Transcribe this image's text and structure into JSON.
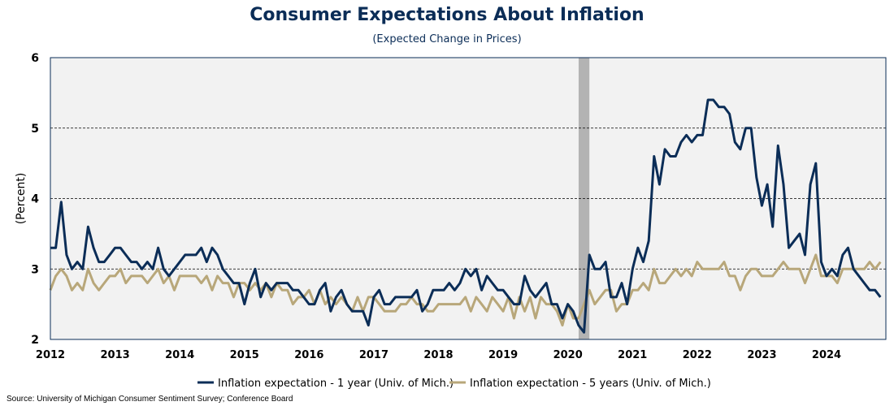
{
  "chart_data": {
    "type": "line",
    "title": "Consumer Expectations About Inflation",
    "subtitle": "(Expected Change in Prices)",
    "ylabel": "(Percent)",
    "xlabel": "",
    "ylim": [
      2,
      6
    ],
    "yticks": [
      "2",
      "3",
      "4",
      "5",
      "6"
    ],
    "xlim": [
      2012.0,
      2024.917
    ],
    "xticks": [
      "2012",
      "2013",
      "2014",
      "2015",
      "2016",
      "2017",
      "2018",
      "2019",
      "2020",
      "2021",
      "2022",
      "2023",
      "2024"
    ],
    "grid": "dashed horizontal at 3, 4, 5",
    "legend": "bottom",
    "recession_shading": {
      "start": 2020.167,
      "end": 2020.333,
      "color": "#b3b3b3"
    },
    "plot_background": "#f2f2f2",
    "series": [
      {
        "name": "Inflation expectation - 1 year (Univ. of Mich.)",
        "color": "#0b2d57",
        "start": "2012-01",
        "values": [
          3.3,
          3.3,
          3.95,
          3.2,
          3.0,
          3.1,
          3.0,
          3.6,
          3.3,
          3.1,
          3.1,
          3.2,
          3.3,
          3.3,
          3.2,
          3.1,
          3.1,
          3.0,
          3.1,
          3.0,
          3.3,
          3.0,
          2.9,
          3.0,
          3.1,
          3.2,
          3.2,
          3.2,
          3.3,
          3.1,
          3.3,
          3.2,
          3.0,
          2.9,
          2.8,
          2.8,
          2.5,
          2.8,
          3.0,
          2.6,
          2.8,
          2.7,
          2.8,
          2.8,
          2.8,
          2.7,
          2.7,
          2.6,
          2.5,
          2.5,
          2.7,
          2.8,
          2.4,
          2.6,
          2.7,
          2.5,
          2.4,
          2.4,
          2.4,
          2.2,
          2.6,
          2.7,
          2.5,
          2.5,
          2.6,
          2.6,
          2.6,
          2.6,
          2.7,
          2.4,
          2.5,
          2.7,
          2.7,
          2.7,
          2.8,
          2.7,
          2.8,
          3.0,
          2.9,
          3.0,
          2.7,
          2.9,
          2.8,
          2.7,
          2.7,
          2.6,
          2.5,
          2.5,
          2.9,
          2.7,
          2.6,
          2.7,
          2.8,
          2.5,
          2.5,
          2.3,
          2.5,
          2.4,
          2.2,
          2.1,
          3.2,
          3.0,
          3.0,
          3.1,
          2.6,
          2.6,
          2.8,
          2.5,
          3.0,
          3.3,
          3.1,
          3.4,
          4.6,
          4.2,
          4.7,
          4.6,
          4.6,
          4.8,
          4.9,
          4.8,
          4.9,
          4.9,
          5.4,
          5.4,
          5.3,
          5.3,
          5.2,
          4.8,
          4.7,
          5.0,
          5.0,
          4.3,
          3.9,
          4.2,
          3.6,
          4.75,
          4.2,
          3.3,
          3.4,
          3.5,
          3.2,
          4.2,
          4.5,
          3.1,
          2.9,
          3.0,
          2.9,
          3.2,
          3.3,
          3.0,
          2.9,
          2.8,
          2.7,
          2.7,
          2.6
        ]
      },
      {
        "name": "Inflation expectation - 5 years (Univ. of Mich.)",
        "color": "#b8a77a",
        "start": "2012-01",
        "values": [
          2.7,
          2.9,
          3.0,
          2.9,
          2.7,
          2.8,
          2.7,
          3.0,
          2.8,
          2.7,
          2.8,
          2.9,
          2.9,
          3.0,
          2.8,
          2.9,
          2.9,
          2.9,
          2.8,
          2.9,
          3.0,
          2.8,
          2.9,
          2.7,
          2.9,
          2.9,
          2.9,
          2.9,
          2.8,
          2.9,
          2.7,
          2.9,
          2.8,
          2.8,
          2.6,
          2.8,
          2.8,
          2.7,
          2.8,
          2.7,
          2.8,
          2.6,
          2.8,
          2.7,
          2.7,
          2.5,
          2.6,
          2.6,
          2.7,
          2.5,
          2.7,
          2.5,
          2.6,
          2.5,
          2.6,
          2.5,
          2.4,
          2.6,
          2.4,
          2.6,
          2.6,
          2.5,
          2.4,
          2.4,
          2.4,
          2.5,
          2.5,
          2.6,
          2.5,
          2.5,
          2.4,
          2.4,
          2.5,
          2.5,
          2.5,
          2.5,
          2.5,
          2.6,
          2.4,
          2.6,
          2.5,
          2.4,
          2.6,
          2.5,
          2.4,
          2.6,
          2.3,
          2.6,
          2.4,
          2.6,
          2.3,
          2.6,
          2.5,
          2.5,
          2.4,
          2.2,
          2.5,
          2.3,
          2.3,
          2.5,
          2.7,
          2.5,
          2.6,
          2.7,
          2.7,
          2.4,
          2.5,
          2.5,
          2.7,
          2.7,
          2.8,
          2.7,
          3.0,
          2.8,
          2.8,
          2.9,
          3.0,
          2.9,
          3.0,
          2.9,
          3.1,
          3.0,
          3.0,
          3.0,
          3.0,
          3.1,
          2.9,
          2.9,
          2.7,
          2.9,
          3.0,
          3.0,
          2.9,
          2.9,
          2.9,
          3.0,
          3.1,
          3.0,
          3.0,
          3.0,
          2.8,
          3.0,
          3.2,
          2.9,
          2.9,
          2.9,
          2.8,
          3.0,
          3.0,
          3.0,
          3.0,
          3.0,
          3.1,
          3.0,
          3.1
        ]
      }
    ]
  },
  "source": "Source: University of Michigan Consumer Sentiment Survey; Conference Board"
}
